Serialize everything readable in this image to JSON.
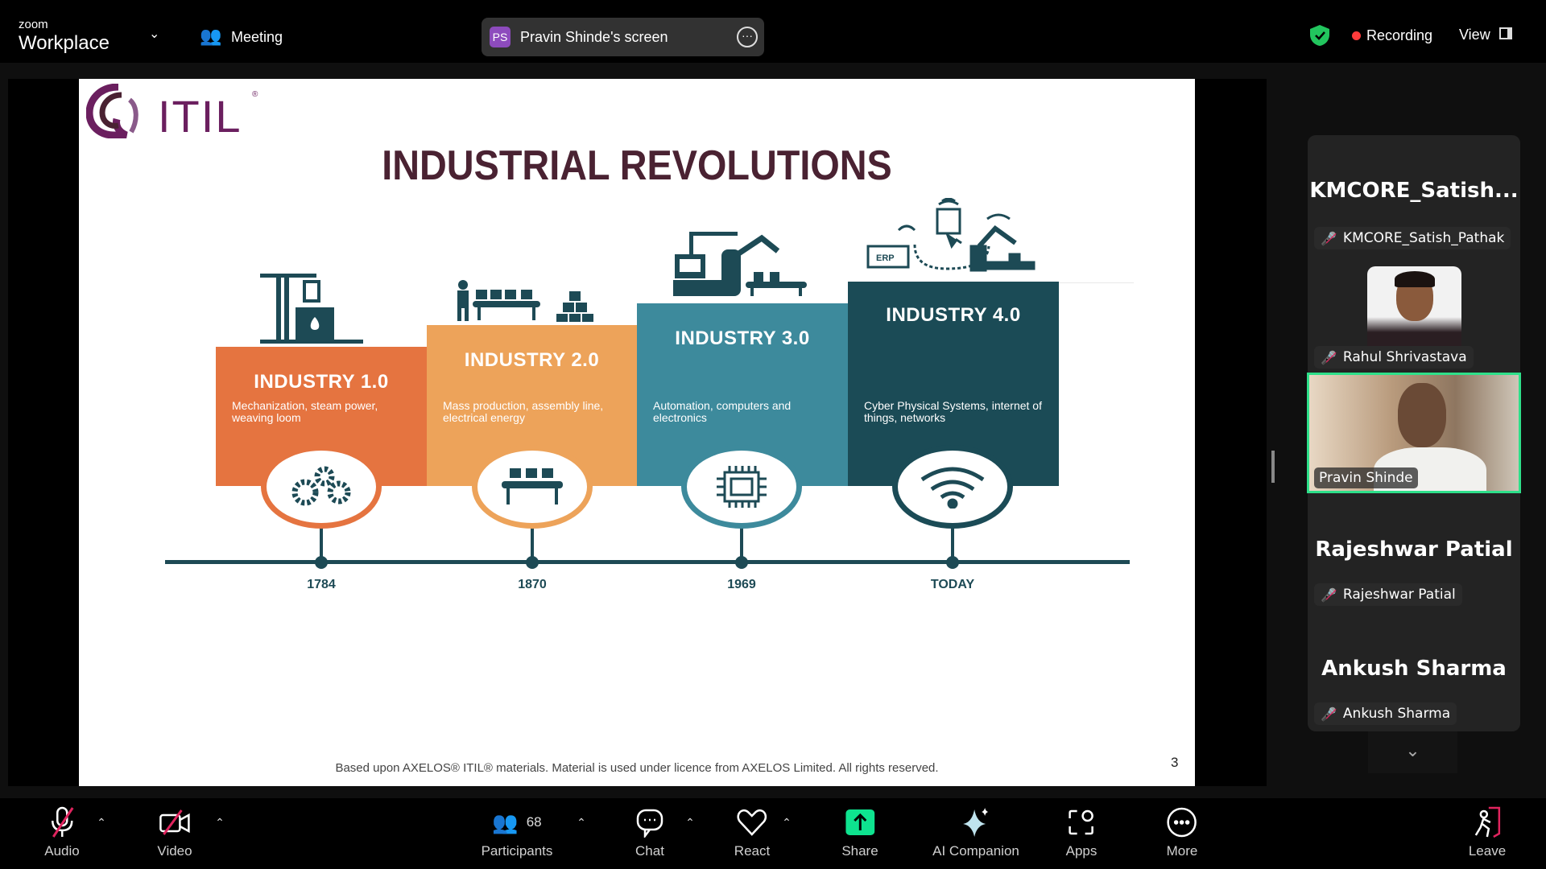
{
  "topbar": {
    "brand_small": "zoom",
    "brand": "Workplace",
    "meeting": "Meeting",
    "share_initials": "PS",
    "share_title": "Pravin Shinde's screen",
    "recording": "Recording",
    "view": "View"
  },
  "slide": {
    "logo": "ITIL",
    "title": "INDUSTRIAL REVOLUTIONS",
    "stages": [
      {
        "title": "INDUSTRY 1.0",
        "desc": "Mechanization, steam power, weaving loom",
        "year": "1784",
        "color": "#e57440",
        "icon": "gears-icon"
      },
      {
        "title": "INDUSTRY 2.0",
        "desc": "Mass production, assembly line, electrical energy",
        "year": "1870",
        "color": "#eda35a",
        "icon": "conveyor-icon"
      },
      {
        "title": "INDUSTRY 3.0",
        "desc": "Automation, computers and electronics",
        "year": "1969",
        "color": "#3d8a9c",
        "icon": "chip-icon"
      },
      {
        "title": "INDUSTRY 4.0",
        "desc": "Cyber Physical Systems, internet of things, networks",
        "year": "TODAY",
        "color": "#1b4b56",
        "icon": "wifi-icon"
      }
    ],
    "erp": "ERP",
    "footer": "Based upon AXELOS® ITIL® materials. Material is used under licence from AXELOS Limited. All rights reserved.",
    "page": "3"
  },
  "participants": [
    {
      "big": "KMCORE_Satish...",
      "label": "KMCORE_Satish_Pathak"
    },
    {
      "label": "Rahul Shrivastava"
    },
    {
      "label": "Pravin Shinde",
      "active": true
    },
    {
      "big": "Rajeshwar Patial",
      "label": "Rajeshwar Patial"
    },
    {
      "big": "Ankush Sharma",
      "label": "Ankush Sharma"
    }
  ],
  "toolbar": {
    "audio": "Audio",
    "video": "Video",
    "participants": "Participants",
    "participant_count": "68",
    "chat": "Chat",
    "react": "React",
    "share": "Share",
    "ai": "AI Companion",
    "apps": "Apps",
    "more": "More",
    "leave": "Leave"
  },
  "colors": {
    "accent_green": "#2ee08a",
    "share_green": "#0ee38f",
    "recording_red": "#ff3b3b",
    "title": "#4a2232",
    "logo": "#6b1f5f"
  }
}
